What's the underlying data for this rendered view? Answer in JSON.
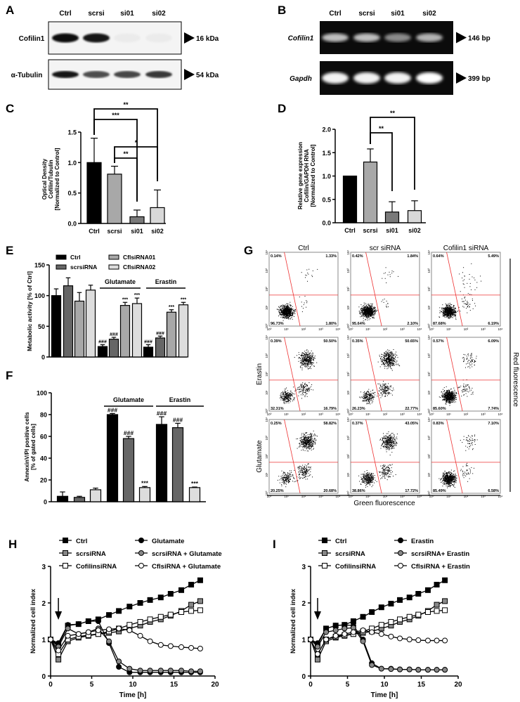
{
  "panel_labels": {
    "A": "A",
    "B": "B",
    "C": "C",
    "D": "D",
    "E": "E",
    "F": "F",
    "G": "G",
    "H": "H",
    "I": "I"
  },
  "western_blot": {
    "lanes": [
      "Ctrl",
      "scrsi",
      "si01",
      "si02"
    ],
    "rows": [
      {
        "label": "Cofilin1",
        "marker": "16 kDa",
        "intensity": [
          0.95,
          0.9,
          0.08,
          0.08
        ]
      },
      {
        "label": "α-Tubulin",
        "marker": "54 kDa",
        "intensity": [
          0.9,
          0.7,
          0.72,
          0.78
        ]
      }
    ]
  },
  "gel": {
    "lanes": [
      "Ctrl",
      "scrsi",
      "si01",
      "si02"
    ],
    "rows": [
      {
        "label": "Cofilin1",
        "marker": "146 bp",
        "intensity": [
          0.75,
          0.75,
          0.55,
          0.7
        ]
      },
      {
        "label": "Gapdh",
        "marker": "399 bp",
        "intensity": [
          0.95,
          0.95,
          0.95,
          1.0
        ]
      }
    ]
  },
  "chart_data": [
    {
      "id": "C",
      "type": "bar",
      "ylabel_lines": [
        "Optical Density",
        "Cofilin/Tubulin",
        "[Normalized to Control]"
      ],
      "categories": [
        "Ctrl",
        "scrsi",
        "si01",
        "si02"
      ],
      "values": [
        1.0,
        0.81,
        0.11,
        0.26
      ],
      "errors": [
        0.4,
        0.13,
        0.11,
        0.29
      ],
      "colors": [
        "#000000",
        "#a8a8a8",
        "#7a7a7a",
        "#d8d8d8"
      ],
      "ylim": [
        0,
        1.5
      ],
      "ytick_values": [
        0,
        0.5,
        1.0,
        1.5
      ],
      "yticks": [
        "0.0",
        "0.5",
        "1.0",
        "1.5"
      ],
      "significance": [
        {
          "from": 0,
          "to": 3,
          "label": "**"
        },
        {
          "from": 0,
          "to": 2,
          "label": "***"
        },
        {
          "from": 1,
          "to": 3,
          "label": "*"
        },
        {
          "from": 1,
          "to": 2,
          "label": "**"
        }
      ]
    },
    {
      "id": "D",
      "type": "bar",
      "ylabel_lines": [
        "Relative gene expression",
        "Cofilin/GAPDH RNA",
        "[Normalized to Control]"
      ],
      "categories": [
        "Ctrl",
        "scrsi",
        "si01",
        "si02"
      ],
      "values": [
        1.0,
        1.3,
        0.23,
        0.26
      ],
      "errors": [
        0,
        0.28,
        0.22,
        0.21
      ],
      "colors": [
        "#000000",
        "#a8a8a8",
        "#7a7a7a",
        "#d8d8d8"
      ],
      "ylim": [
        0,
        2.0
      ],
      "ytick_values": [
        0,
        0.5,
        1.0,
        1.5,
        2.0
      ],
      "yticks": [
        "0.0",
        "0.5",
        "1.0",
        "1.5",
        "2.0"
      ],
      "significance": [
        {
          "from": 1,
          "to": 3,
          "label": "**"
        },
        {
          "from": 1,
          "to": 2,
          "label": "**"
        }
      ]
    },
    {
      "id": "E",
      "type": "bar",
      "ylabel": "Metabolic activity [% of Ctrl]",
      "legend": [
        "Ctrl",
        "scrsiRNA",
        "CflsiRNA01",
        "CflsiRNA02"
      ],
      "colors": [
        "#000000",
        "#666666",
        "#a8a8a8",
        "#dddddd"
      ],
      "groups": [
        "",
        "Glutamate",
        "Erastin"
      ],
      "values": [
        100,
        116,
        91,
        109,
        17,
        29,
        84,
        87,
        16,
        31,
        73,
        85
      ],
      "errors": [
        11,
        13,
        14,
        8,
        3,
        3,
        5,
        9,
        4,
        3,
        4,
        4
      ],
      "annotations": [
        "",
        "",
        "",
        "",
        "###",
        "###",
        "***",
        "***",
        "###",
        "###",
        "***",
        "***"
      ],
      "ylim": [
        0,
        150
      ],
      "ytick_values": [
        0,
        50,
        100,
        150
      ],
      "yticks": [
        "0",
        "50",
        "100",
        "150"
      ]
    },
    {
      "id": "F",
      "type": "bar",
      "ylabel_lines": [
        "AnnexinV/PI positive cells",
        "[% of gated cells]"
      ],
      "colors": [
        "#000000",
        "#666666",
        "#dddddd"
      ],
      "groups": [
        "",
        "Glutamate",
        "Erastin"
      ],
      "values": [
        5,
        4,
        11,
        80,
        58,
        13,
        71,
        68,
        13
      ],
      "errors": [
        4,
        1,
        1.5,
        1,
        2,
        1,
        7,
        4,
        0.5
      ],
      "annotations": [
        "",
        "",
        "",
        "###",
        "###",
        "***",
        "###",
        "###",
        "***"
      ],
      "ylim": [
        0,
        100
      ],
      "ytick_values": [
        0,
        20,
        40,
        60,
        80,
        100
      ],
      "yticks": [
        "0",
        "20",
        "40",
        "60",
        "80",
        "100"
      ]
    },
    {
      "id": "G",
      "type": "scatter",
      "columns": [
        "Ctrl",
        "scr siRNA",
        "Cofilin1 siRNA"
      ],
      "rows": [
        "",
        "Erastin",
        "Glutamate"
      ],
      "xlabel": "Green fluorescence",
      "ylabel": "Red fluorescence",
      "axis_ticks": [
        "10⁰",
        "10¹",
        "10²",
        "10³",
        "10⁴"
      ],
      "quadrants": [
        [
          {
            "UL": "0.14%",
            "UR": "1.33%",
            "LL": "96.73%",
            "LR": "1.80%"
          },
          {
            "UL": "0.42%",
            "UR": "1.84%",
            "LL": "95.64%",
            "LR": "2.10%"
          },
          {
            "UL": "0.64%",
            "UR": "5.49%",
            "LL": "87.68%",
            "LR": "6.19%"
          }
        ],
        [
          {
            "UL": "0.39%",
            "UR": "50.50%",
            "LL": "32.31%",
            "LR": "16.79%"
          },
          {
            "UL": "0.35%",
            "UR": "50.65%",
            "LL": "26.23%",
            "LR": "22.77%"
          },
          {
            "UL": "0.57%",
            "UR": "6.09%",
            "LL": "85.60%",
            "LR": "7.74%"
          }
        ],
        [
          {
            "UL": "0.25%",
            "UR": "58.82%",
            "LL": "20.25%",
            "LR": "20.68%"
          },
          {
            "UL": "0.37%",
            "UR": "43.05%",
            "LL": "38.86%",
            "LR": "17.72%"
          },
          {
            "UL": "0.83%",
            "UR": "7.10%",
            "LL": "85.49%",
            "LR": "6.58%"
          }
        ]
      ]
    },
    {
      "id": "H",
      "type": "line",
      "xlabel": "Time [h]",
      "ylabel": "Normalized cell index",
      "xlim": [
        0,
        20
      ],
      "ylim": [
        0,
        3
      ],
      "xticks": [
        "0",
        "5",
        "10",
        "15",
        "20"
      ],
      "xtick_values": [
        0,
        5,
        10,
        15,
        20
      ],
      "yticks": [
        "0",
        "1",
        "2",
        "3"
      ],
      "ytick_values": [
        0,
        1,
        2,
        3
      ],
      "treatment_arrow_x": 0.95,
      "x": [
        0,
        0.95,
        2.1,
        3.4,
        4.6,
        5.8,
        7.1,
        8.3,
        9.6,
        10.9,
        12.1,
        13.4,
        14.6,
        15.9,
        17.1,
        18.2
      ],
      "series": [
        {
          "name": "Ctrl",
          "marker": "square",
          "fill": "#000000",
          "values": [
            1,
            0.85,
            1.38,
            1.42,
            1.5,
            1.55,
            1.67,
            1.78,
            1.9,
            2.0,
            2.08,
            2.15,
            2.25,
            2.35,
            2.5,
            2.62
          ]
        },
        {
          "name": "scrsiRNA",
          "marker": "square",
          "fill": "#888888",
          "values": [
            1,
            0.45,
            0.95,
            1.05,
            1.1,
            1.15,
            1.18,
            1.22,
            1.3,
            1.38,
            1.48,
            1.55,
            1.65,
            1.78,
            1.95,
            2.05
          ]
        },
        {
          "name": "CofilinsiRNA",
          "marker": "square",
          "fill": "#ffffff",
          "values": [
            1,
            0.6,
            1.0,
            1.08,
            1.12,
            1.15,
            1.22,
            1.3,
            1.4,
            1.48,
            1.55,
            1.62,
            1.68,
            1.75,
            1.78,
            1.8
          ]
        },
        {
          "name": "Glutamate",
          "marker": "circle",
          "fill": "#000000",
          "values": [
            1,
            0.9,
            1.4,
            1.42,
            1.5,
            1.5,
            0.9,
            0.25,
            0.1,
            0.1,
            0.1,
            0.1,
            0.1,
            0.1,
            0.1,
            0.1
          ]
        },
        {
          "name": "scrsiRNA + Glutamate",
          "marker": "circle",
          "fill": "#888888",
          "values": [
            1,
            0.8,
            1.3,
            1.15,
            1.2,
            1.3,
            0.95,
            0.4,
            0.2,
            0.15,
            0.15,
            0.15,
            0.15,
            0.15,
            0.13,
            0.13
          ]
        },
        {
          "name": "CflsiRNA  + Glutamate",
          "marker": "circle",
          "fill": "#ffffff",
          "values": [
            1,
            0.7,
            1.1,
            1.15,
            1.2,
            1.25,
            1.28,
            1.3,
            1.25,
            1.1,
            0.95,
            0.85,
            0.82,
            0.79,
            0.77,
            0.75
          ]
        }
      ]
    },
    {
      "id": "I",
      "type": "line",
      "xlabel": "Time [h]",
      "ylabel": "Normalized cell index",
      "xlim": [
        0,
        20
      ],
      "ylim": [
        0,
        3
      ],
      "xticks": [
        "0",
        "5",
        "10",
        "15",
        "20"
      ],
      "xtick_values": [
        0,
        5,
        10,
        15,
        20
      ],
      "yticks": [
        "0",
        "1",
        "2",
        "3"
      ],
      "ytick_values": [
        0,
        1,
        2,
        3
      ],
      "treatment_arrow_x": 0.95,
      "x": [
        0,
        0.95,
        2.1,
        3.4,
        4.6,
        5.8,
        7.1,
        8.3,
        9.6,
        10.9,
        12.1,
        13.4,
        14.6,
        15.9,
        17.1,
        18.2
      ],
      "series": [
        {
          "name": "Ctrl",
          "marker": "square",
          "fill": "#000000",
          "values": [
            1,
            0.85,
            1.3,
            1.38,
            1.4,
            1.5,
            1.62,
            1.75,
            1.88,
            1.98,
            2.08,
            2.15,
            2.25,
            2.35,
            2.5,
            2.62
          ]
        },
        {
          "name": "scrsiRNA",
          "marker": "square",
          "fill": "#888888",
          "values": [
            1,
            0.45,
            0.95,
            1.05,
            1.1,
            1.15,
            1.18,
            1.22,
            1.3,
            1.38,
            1.48,
            1.55,
            1.65,
            1.78,
            1.95,
            2.05
          ]
        },
        {
          "name": "CofilinsiRNA",
          "marker": "square",
          "fill": "#ffffff",
          "values": [
            1,
            0.6,
            1.0,
            1.08,
            1.12,
            1.15,
            1.22,
            1.3,
            1.4,
            1.48,
            1.55,
            1.62,
            1.68,
            1.75,
            1.78,
            1.8
          ]
        },
        {
          "name": "Erastin",
          "marker": "circle",
          "fill": "#000000",
          "values": [
            1,
            0.9,
            1.3,
            1.38,
            1.4,
            1.38,
            1.0,
            0.35,
            0.2,
            0.2,
            0.18,
            0.18,
            0.17,
            0.17,
            0.17,
            0.17
          ]
        },
        {
          "name": "scrsiRNA+ Erastin",
          "marker": "circle",
          "fill": "#888888",
          "values": [
            1,
            0.8,
            1.2,
            1.25,
            1.3,
            1.32,
            0.95,
            0.3,
            0.2,
            0.19,
            0.18,
            0.18,
            0.17,
            0.17,
            0.17,
            0.17
          ]
        },
        {
          "name": "CflsiRNA + Erastin",
          "marker": "circle",
          "fill": "#ffffff",
          "values": [
            1,
            0.6,
            1.0,
            1.1,
            1.15,
            1.2,
            1.25,
            1.2,
            1.15,
            1.08,
            1.03,
            1.0,
            0.98,
            0.97,
            0.97,
            0.97
          ]
        }
      ]
    }
  ]
}
